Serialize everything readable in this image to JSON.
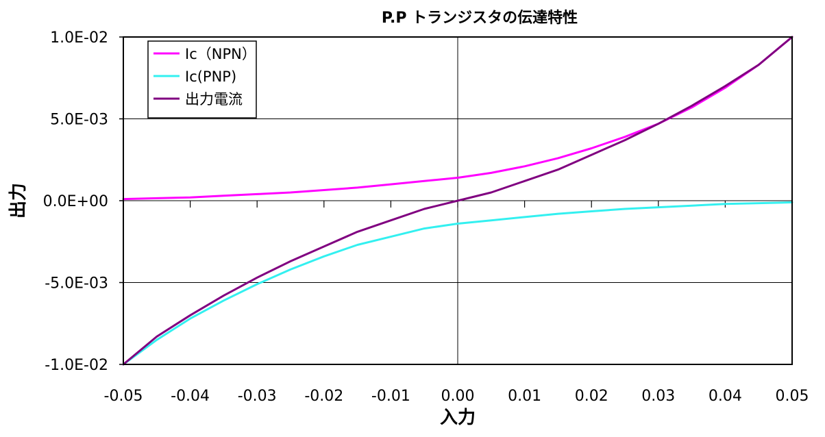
{
  "chart_data": {
    "type": "line",
    "title": "P.P トランジスタの伝達特性",
    "xlabel": "入力",
    "ylabel": "出力",
    "xlim": [
      -0.05,
      0.05
    ],
    "ylim": [
      -0.01,
      0.01
    ],
    "x_ticks": [
      -0.05,
      -0.04,
      -0.03,
      -0.02,
      -0.01,
      0.0,
      0.01,
      0.02,
      0.03,
      0.04,
      0.05
    ],
    "x_tick_labels": [
      "-0.05",
      "-0.04",
      "-0.03",
      "-0.02",
      "-0.01",
      "0.00",
      "0.01",
      "0.02",
      "0.03",
      "0.04",
      "0.05"
    ],
    "y_ticks": [
      0.01,
      0.005,
      0.0,
      -0.005,
      -0.01
    ],
    "y_tick_labels": [
      "1.0E-02",
      "5.0E-03",
      "0.0E+00",
      "-5.0E-03",
      "-1.0E-02"
    ],
    "grid": "horizontal",
    "legend_position": "top-left",
    "x": [
      -0.05,
      -0.045,
      -0.04,
      -0.035,
      -0.03,
      -0.025,
      -0.02,
      -0.015,
      -0.01,
      -0.005,
      0.0,
      0.005,
      0.01,
      0.015,
      0.02,
      0.025,
      0.03,
      0.035,
      0.04,
      0.045,
      0.05
    ],
    "series": [
      {
        "name": "Ic（NPN）",
        "color": "#ff00ff",
        "values": [
          0.0001,
          0.00015,
          0.0002,
          0.0003,
          0.0004,
          0.0005,
          0.00065,
          0.0008,
          0.001,
          0.0012,
          0.0014,
          0.0017,
          0.0021,
          0.0026,
          0.0032,
          0.0039,
          0.0047,
          0.0057,
          0.0069,
          0.0083,
          0.01
        ]
      },
      {
        "name": "Ic(PNP)",
        "color": "#33f0f0",
        "values": [
          -0.01,
          -0.0085,
          -0.0072,
          -0.0061,
          -0.0051,
          -0.0042,
          -0.0034,
          -0.0027,
          -0.0022,
          -0.0017,
          -0.0014,
          -0.0012,
          -0.001,
          -0.0008,
          -0.00065,
          -0.0005,
          -0.0004,
          -0.0003,
          -0.0002,
          -0.00015,
          -0.0001
        ]
      },
      {
        "name": "出力電流",
        "color": "#800080",
        "values": [
          -0.01,
          -0.0083,
          -0.007,
          -0.0058,
          -0.0047,
          -0.0037,
          -0.0028,
          -0.0019,
          -0.0012,
          -0.0005,
          0.0,
          0.0005,
          0.0012,
          0.0019,
          0.0028,
          0.0037,
          0.0047,
          0.0058,
          0.007,
          0.0083,
          0.01
        ]
      }
    ]
  }
}
